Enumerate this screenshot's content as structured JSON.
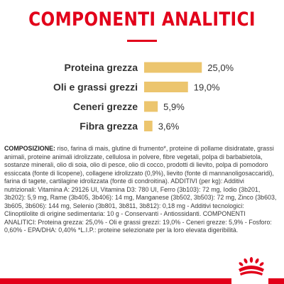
{
  "title": "COMPONENTI ANALITICI",
  "chart_data": {
    "type": "bar",
    "orientation": "horizontal",
    "categories": [
      "Proteina grezza",
      "Oli e grassi grezzi",
      "Ceneri grezze",
      "Fibra grezza"
    ],
    "values": [
      25.0,
      19.0,
      5.9,
      3.6
    ],
    "value_labels": [
      "25,0%",
      "19,0%",
      "5,9%",
      "3,6%"
    ],
    "bar_color": "#ecc56e",
    "label_color": "#333333"
  },
  "composition": {
    "heading": "COMPOSIZIONE:",
    "text": "riso, farina di mais, glutine di frumento*, proteine di pollame disidratate, grassi animali, proteine animali idrolizzate, cellulosa in polvere, fibre vegetali, polpa di barbabietola, sostanze minerali, olio di soia, olio di pesce, olio di cocco, prodotti di lievito, polpa di pomodoro essiccata (fonte di licopene), collagene idrolizzato (0,9%), lievito (fonte di mannanoligosaccaridi), farina di tagete, cartilagine idrolizzata (fonte di condroitina). ADDITIVI (per kg): Additivi nutrizionali: Vitamina A: 29126 UI, Vitamina D3: 780 UI, Ferro (3b103): 72 mg, Iodio (3b201, 3b202): 5,9 mg, Rame (3b405, 3b406): 14 mg, Manganese (3b502, 3b503): 72 mg, Zinco (3b603, 3b605, 3b606): 144 mg, Selenio (3b801, 3b811, 3b812): 0,18 mg - Additivi tecnologici: Clinoptilolite di origine sedimentaria: 10 g - Conservanti - Antiossidanti. COMPONENTI ANALITICI: Proteina grezza: 25,0% - Oli e grassi grezzi: 19,0% - Ceneri grezze: 5,9% - Fosforo: 0,60% - EPA/DHA: 0,40% *L.I.P.: proteine selezionate per la loro elevata digeribilità."
  },
  "colors": {
    "brand_red": "#e2001a",
    "bar": "#ecc56e"
  },
  "icons": {
    "logo": "royal-canin-crown-icon"
  }
}
